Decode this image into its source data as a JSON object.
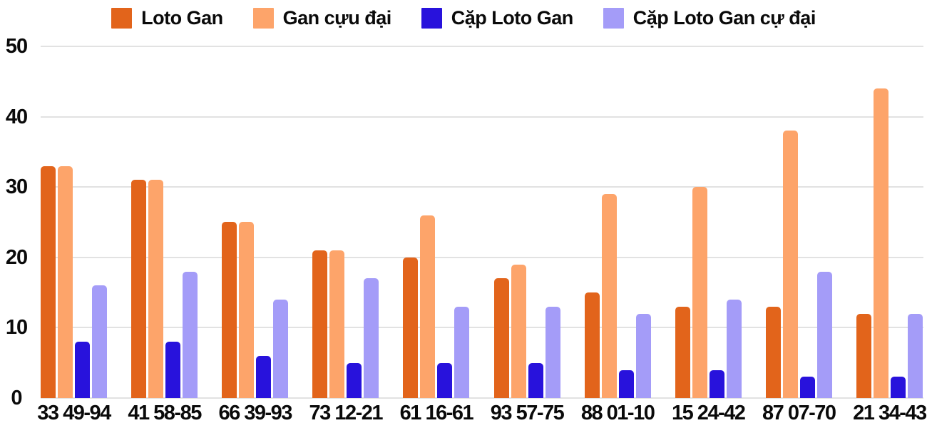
{
  "chart_data": {
    "type": "bar",
    "title": "",
    "xlabel": "",
    "ylabel": "",
    "categories": [
      "33 49-94",
      "41 58-85",
      "66 39-93",
      "73 12-21",
      "61 16-61",
      "93 57-75",
      "88 01-10",
      "15 24-42",
      "87 07-70",
      "21 34-43"
    ],
    "series": [
      {
        "name": "Loto Gan",
        "color": "#e2641b",
        "values": [
          33,
          31,
          25,
          21,
          20,
          17,
          15,
          13,
          13,
          12
        ]
      },
      {
        "name": "Gan cựu đại",
        "color": "#fda46a",
        "values": [
          33,
          31,
          25,
          21,
          26,
          19,
          29,
          30,
          38,
          44
        ]
      },
      {
        "name": "Cặp Loto Gan",
        "color": "#2812dc",
        "values": [
          8,
          8,
          6,
          5,
          5,
          5,
          4,
          4,
          3,
          3
        ]
      },
      {
        "name": "Cặp Loto Gan cự đại",
        "color": "#a49cf8",
        "values": [
          16,
          18,
          14,
          17,
          13,
          13,
          12,
          14,
          18,
          12
        ]
      }
    ],
    "ylim": [
      0,
      50
    ],
    "yticks": [
      0,
      10,
      20,
      30,
      40,
      50
    ],
    "grid": true,
    "legend_position": "top"
  },
  "colors": {
    "background": "#ffffff",
    "grid": "#e2e2e2",
    "text": "#0a0a0a"
  }
}
